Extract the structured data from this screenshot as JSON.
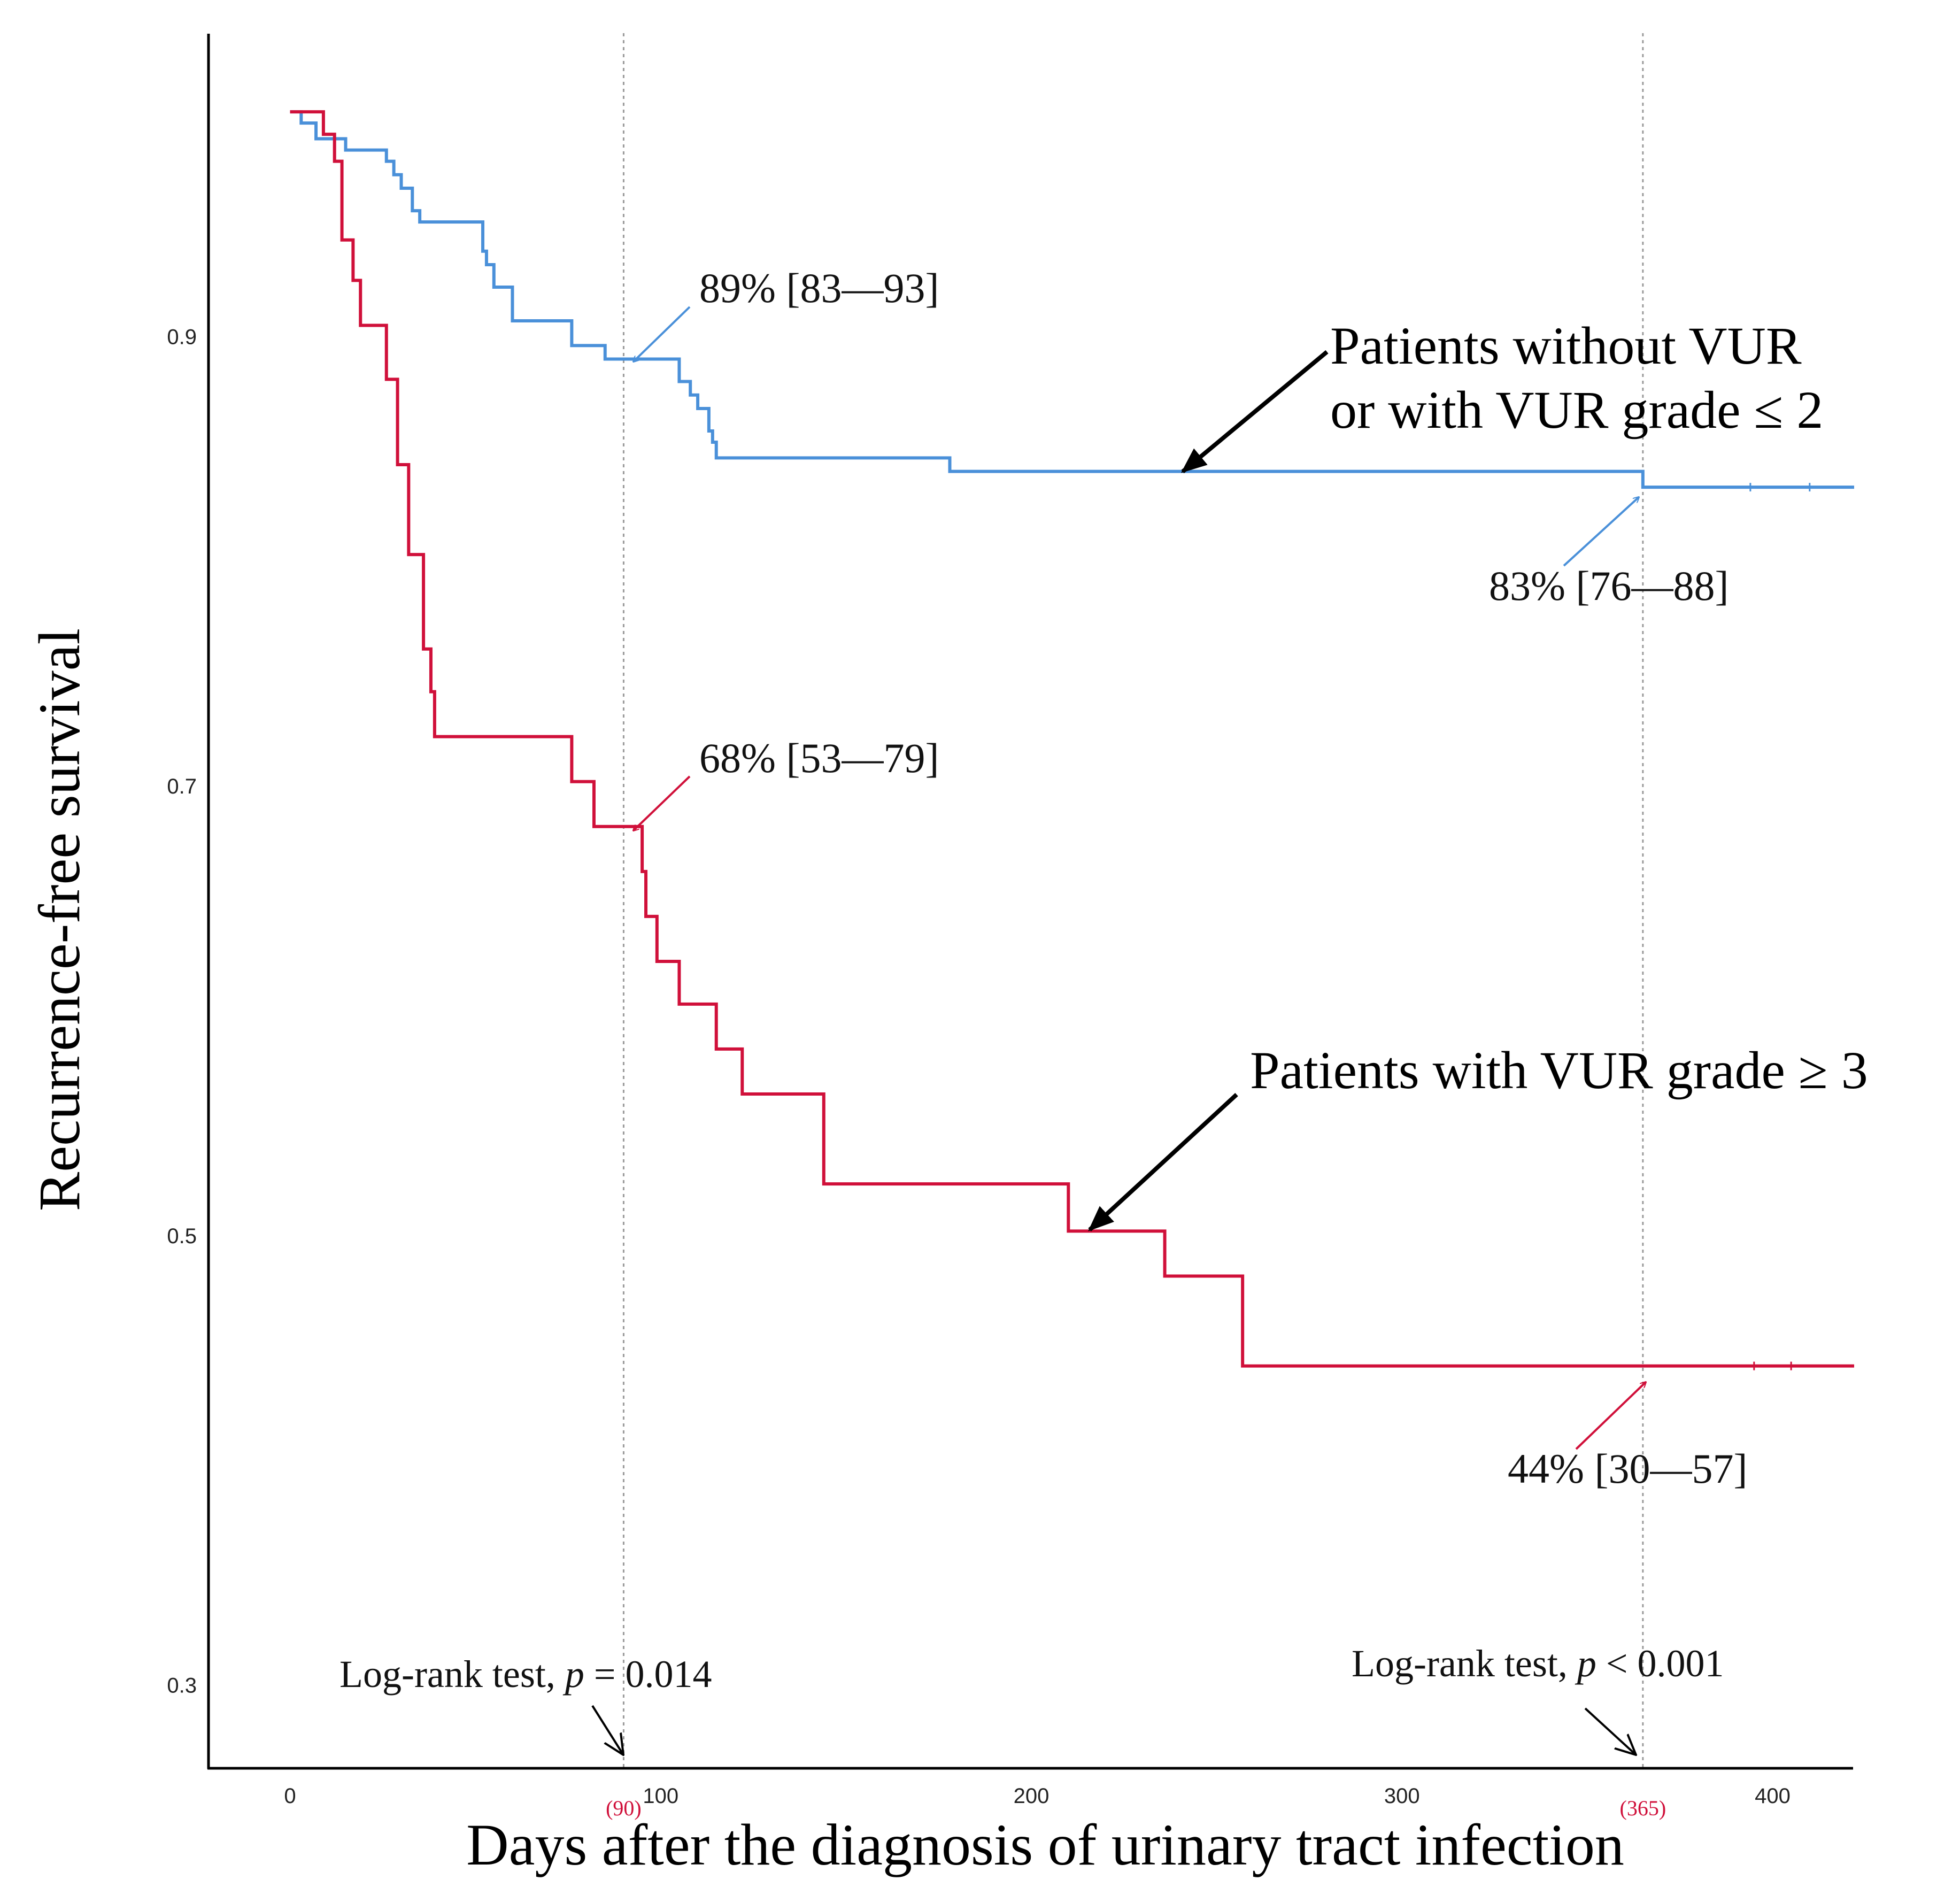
{
  "colors": {
    "group1": "#4a90d9",
    "group2": "#d0103a",
    "vline": "#9a9a9a",
    "highlight": "#d0103a",
    "axis": "#000000"
  },
  "chart_data": {
    "type": "line",
    "subtype": "kaplan-meier step",
    "xlabel": "Days after the diagnosis of urinary tract infection",
    "ylabel": "Recurrence-free survival",
    "xlim": [
      -22,
      422
    ],
    "ylim": [
      0.263,
      1.035
    ],
    "xticks": [
      0,
      100,
      200,
      300,
      400
    ],
    "yticks": [
      0.3,
      0.5,
      0.7,
      0.9
    ],
    "reference_lines": [
      90,
      365
    ],
    "reference_labels": [
      "(90)",
      "(365)"
    ],
    "series": [
      {
        "name": "Patients without VUR or with VUR grade ≤ 2",
        "color": "#4a90d9",
        "x": [
          0,
          3,
          7,
          15,
          26,
          28,
          30,
          33,
          35,
          52,
          53,
          55,
          60,
          76,
          85,
          100,
          105,
          108,
          110,
          113,
          114,
          115,
          178,
          360,
          365,
          422
        ],
        "y": [
          1.0,
          0.995,
          0.988,
          0.983,
          0.978,
          0.972,
          0.966,
          0.956,
          0.951,
          0.938,
          0.932,
          0.922,
          0.907,
          0.896,
          0.89,
          0.89,
          0.88,
          0.874,
          0.868,
          0.858,
          0.853,
          0.846,
          0.84,
          0.84,
          0.833,
          0.833
        ],
        "censor_x": [
          394,
          410
        ]
      },
      {
        "name": "Patients with VUR grade ≥ 3",
        "color": "#d0103a",
        "x": [
          0,
          9,
          12,
          14,
          17,
          19,
          26,
          29,
          32,
          36,
          38,
          39,
          76,
          82,
          95,
          96,
          99,
          105,
          115,
          122,
          144,
          210,
          236,
          257,
          422
        ],
        "y": [
          1.0,
          0.99,
          0.978,
          0.943,
          0.925,
          0.905,
          0.881,
          0.843,
          0.803,
          0.761,
          0.742,
          0.722,
          0.702,
          0.682,
          0.662,
          0.642,
          0.622,
          0.603,
          0.583,
          0.563,
          0.523,
          0.502,
          0.482,
          0.442,
          0.442
        ],
        "censor_x": [
          395,
          405
        ]
      }
    ],
    "annotations": [
      {
        "id": "blue90",
        "text": "89% [83—93]"
      },
      {
        "id": "blue365",
        "text": "83% [76—88]"
      },
      {
        "id": "red90",
        "text": "68% [53—79]"
      },
      {
        "id": "red365",
        "text": "44% [30—57]"
      },
      {
        "id": "g1label_line1",
        "text": "Patients without VUR"
      },
      {
        "id": "g1label_line2",
        "text": "or with VUR grade ≤ 2"
      },
      {
        "id": "g2label",
        "text": "Patients with VUR grade ≥ 3"
      }
    ],
    "logrank": [
      {
        "at": 90,
        "prefix": "Log-rank test, ",
        "p": "p",
        "suffix": " = 0.014"
      },
      {
        "at": 365,
        "prefix": "Log-rank test, ",
        "p": "p",
        "suffix": " < 0.001"
      }
    ]
  }
}
